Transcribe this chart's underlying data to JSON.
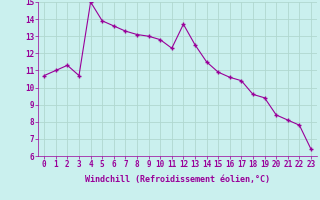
{
  "x": [
    0,
    1,
    2,
    3,
    4,
    5,
    6,
    7,
    8,
    9,
    10,
    11,
    12,
    13,
    14,
    15,
    16,
    17,
    18,
    19,
    20,
    21,
    22,
    23
  ],
  "y": [
    10.7,
    11.0,
    11.3,
    10.7,
    15.0,
    13.9,
    13.6,
    13.3,
    13.1,
    13.0,
    12.8,
    12.3,
    13.7,
    12.5,
    11.5,
    10.9,
    10.6,
    10.4,
    9.6,
    9.4,
    8.4,
    8.1,
    7.8,
    6.4
  ],
  "line_color": "#990099",
  "marker": "+",
  "marker_size": 3,
  "bg_color": "#caf0ee",
  "grid_color": "#b0d8d0",
  "xlabel": "Windchill (Refroidissement éolien,°C)",
  "xlabel_color": "#990099",
  "tick_color": "#990099",
  "ylim": [
    6,
    15
  ],
  "xlim": [
    -0.5,
    23.5
  ],
  "yticks": [
    6,
    7,
    8,
    9,
    10,
    11,
    12,
    13,
    14,
    15
  ],
  "xticks": [
    0,
    1,
    2,
    3,
    4,
    5,
    6,
    7,
    8,
    9,
    10,
    11,
    12,
    13,
    14,
    15,
    16,
    17,
    18,
    19,
    20,
    21,
    22,
    23
  ],
  "tick_fontsize": 5.5,
  "xlabel_fontsize": 6.0
}
